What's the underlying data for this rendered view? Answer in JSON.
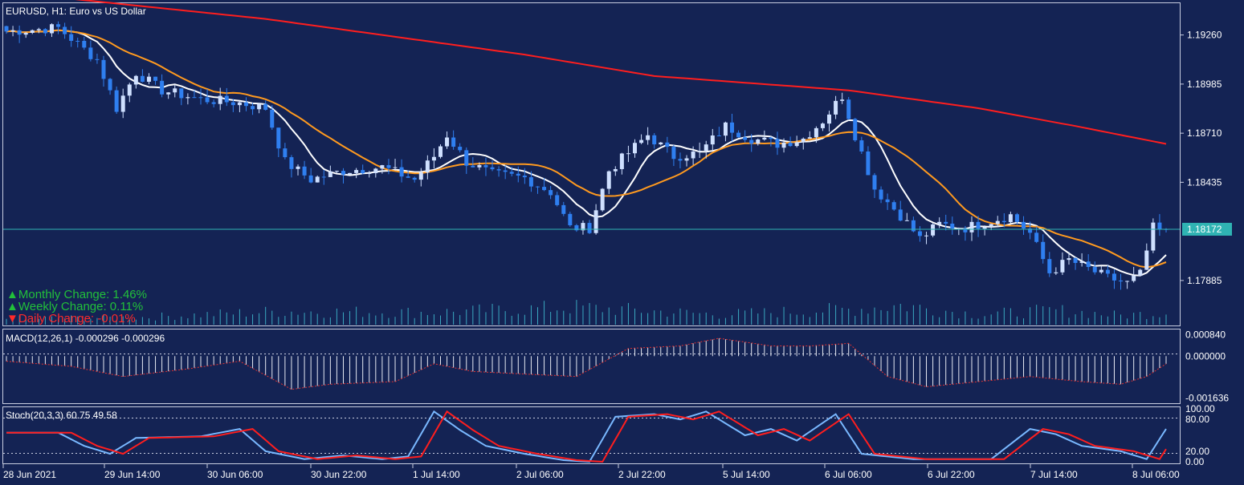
{
  "chart_data": {
    "type": "candlestick",
    "title": "EURUSD, H1:  Euro vs US Dollar",
    "current_price": "1.18172",
    "price_axis": {
      "range": [
        1.1766,
        1.1942
      ],
      "ticks": [
        "1.19260",
        "1.18985",
        "1.18710",
        "1.18435",
        "1.17885"
      ]
    },
    "time_axis": {
      "labels": [
        "28 Jun 2021",
        "29 Jun 14:00",
        "30 Jun 06:00",
        "30 Jun 22:00",
        "1 Jul 14:00",
        "2 Jul 06:00",
        "2 Jul 22:00",
        "5 Jul 14:00",
        "6 Jul 06:00",
        "6 Jul 22:00",
        "7 Jul 14:00",
        "8 Jul 06:00"
      ],
      "bars": 180
    },
    "changes": [
      {
        "label": "Monthly Change: 1.46%",
        "direction": "up"
      },
      {
        "label": "Weekly Change: 0.11%",
        "direction": "up"
      },
      {
        "label": "Daily Change: -0.01%",
        "direction": "down"
      }
    ],
    "close_keypoints": [
      [
        0,
        1.1928
      ],
      [
        8,
        1.193
      ],
      [
        14,
        1.1912
      ],
      [
        17,
        1.1885
      ],
      [
        20,
        1.1905
      ],
      [
        24,
        1.1895
      ],
      [
        30,
        1.189
      ],
      [
        36,
        1.1888
      ],
      [
        40,
        1.1885
      ],
      [
        43,
        1.1855
      ],
      [
        47,
        1.1845
      ],
      [
        52,
        1.185
      ],
      [
        58,
        1.1852
      ],
      [
        63,
        1.1845
      ],
      [
        66,
        1.1858
      ],
      [
        68,
        1.187
      ],
      [
        71,
        1.1855
      ],
      [
        75,
        1.1848
      ],
      [
        80,
        1.1846
      ],
      [
        84,
        1.1838
      ],
      [
        87,
        1.1818
      ],
      [
        90,
        1.1818
      ],
      [
        93,
        1.185
      ],
      [
        96,
        1.186
      ],
      [
        99,
        1.187
      ],
      [
        103,
        1.1858
      ],
      [
        107,
        1.186
      ],
      [
        111,
        1.1875
      ],
      [
        115,
        1.1868
      ],
      [
        119,
        1.1865
      ],
      [
        123,
        1.1868
      ],
      [
        126,
        1.1878
      ],
      [
        129,
        1.1892
      ],
      [
        131,
        1.187
      ],
      [
        134,
        1.184
      ],
      [
        138,
        1.1825
      ],
      [
        141,
        1.1812
      ],
      [
        144,
        1.182
      ],
      [
        148,
        1.1818
      ],
      [
        152,
        1.1822
      ],
      [
        155,
        1.1825
      ],
      [
        158,
        1.1815
      ],
      [
        161,
        1.1793
      ],
      [
        164,
        1.18
      ],
      [
        167,
        1.1795
      ],
      [
        170,
        1.179
      ],
      [
        173,
        1.1787
      ],
      [
        175,
        1.1792
      ],
      [
        177,
        1.1818
      ],
      [
        179,
        1.1815
      ]
    ],
    "moving_averages": [
      {
        "color": "#ffffff",
        "period": 20,
        "kind": "fast"
      },
      {
        "color": "#ff9a1f",
        "period": 50,
        "kind": "medium"
      },
      {
        "color": "#ff1e1e",
        "period": 200,
        "kind": "slow"
      }
    ],
    "volume_keypoints": [
      [
        0,
        0.3
      ],
      [
        20,
        0.35
      ],
      [
        42,
        0.65
      ],
      [
        66,
        0.6
      ],
      [
        88,
        0.85
      ],
      [
        110,
        0.5
      ],
      [
        130,
        0.75
      ],
      [
        138,
        0.95
      ],
      [
        150,
        0.5
      ],
      [
        162,
        0.7
      ],
      [
        172,
        0.45
      ],
      [
        179,
        0.6
      ]
    ],
    "macd": {
      "label": "MACD(12,26,1) -0.000296 -0.000296",
      "ticks": [
        "0.000840",
        "0.000000",
        "-0.001636"
      ],
      "range": [
        -0.00175,
        0.00095
      ],
      "keypoints": [
        [
          0,
          -0.0002
        ],
        [
          10,
          -0.0004
        ],
        [
          18,
          -0.0008
        ],
        [
          28,
          -0.0005
        ],
        [
          36,
          -0.0002
        ],
        [
          44,
          -0.0013
        ],
        [
          50,
          -0.0011
        ],
        [
          60,
          -0.001
        ],
        [
          66,
          -0.0003
        ],
        [
          72,
          -0.0006
        ],
        [
          80,
          -0.0007
        ],
        [
          88,
          -0.0008
        ],
        [
          96,
          0.0003
        ],
        [
          104,
          0.0004
        ],
        [
          110,
          0.0007
        ],
        [
          118,
          0.0004
        ],
        [
          124,
          0.0004
        ],
        [
          130,
          0.0005
        ],
        [
          136,
          -0.0008
        ],
        [
          142,
          -0.0012
        ],
        [
          150,
          -0.001
        ],
        [
          158,
          -0.0008
        ],
        [
          166,
          -0.001
        ],
        [
          172,
          -0.0011
        ],
        [
          176,
          -0.0008
        ],
        [
          179,
          -0.0003
        ]
      ]
    },
    "stochastic": {
      "label": "Stoch(20,3,3) 60.75 49.58",
      "ticks": [
        "100.00",
        "80.00",
        "20.00",
        "0.00"
      ],
      "range": [
        0,
        100
      ],
      "levels": [
        80,
        20
      ],
      "main_color": "#79b8ff",
      "signal_color": "#ff1e1e",
      "keypoints": [
        [
          0,
          55
        ],
        [
          8,
          55
        ],
        [
          12,
          30
        ],
        [
          16,
          15
        ],
        [
          20,
          45
        ],
        [
          30,
          48
        ],
        [
          36,
          62
        ],
        [
          40,
          20
        ],
        [
          46,
          5
        ],
        [
          52,
          12
        ],
        [
          58,
          5
        ],
        [
          62,
          10
        ],
        [
          66,
          95
        ],
        [
          70,
          60
        ],
        [
          74,
          30
        ],
        [
          80,
          15
        ],
        [
          86,
          3
        ],
        [
          90,
          0
        ],
        [
          94,
          85
        ],
        [
          100,
          90
        ],
        [
          104,
          80
        ],
        [
          108,
          95
        ],
        [
          114,
          50
        ],
        [
          118,
          62
        ],
        [
          122,
          40
        ],
        [
          128,
          90
        ],
        [
          132,
          15
        ],
        [
          140,
          5
        ],
        [
          146,
          5
        ],
        [
          152,
          5
        ],
        [
          158,
          62
        ],
        [
          162,
          52
        ],
        [
          166,
          30
        ],
        [
          172,
          20
        ],
        [
          176,
          5
        ],
        [
          179,
          62
        ]
      ]
    }
  }
}
